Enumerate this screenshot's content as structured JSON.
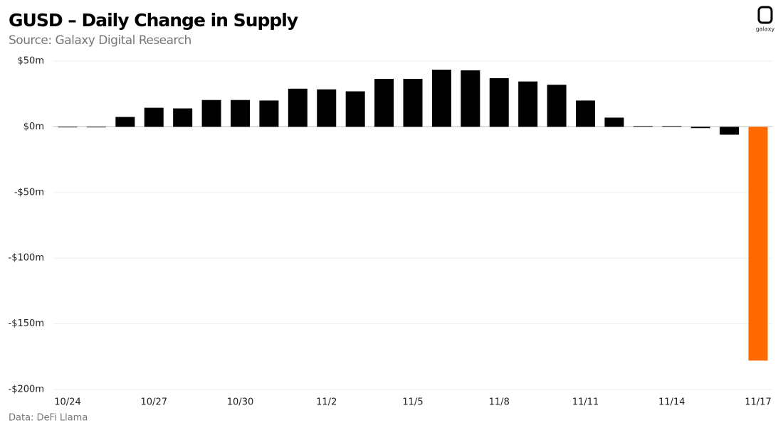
{
  "chart_data": {
    "type": "bar",
    "title": "GUSD – Daily Change in Supply",
    "subtitle": "Source: Galaxy Digital Research",
    "note": "Data: DeFi Llama",
    "logo": "galaxy",
    "categories": [
      "10/24",
      null,
      null,
      "10/27",
      null,
      null,
      "10/30",
      null,
      null,
      "11/2",
      null,
      null,
      "11/5",
      null,
      null,
      "11/8",
      null,
      null,
      "11/11",
      null,
      null,
      "11/14",
      null,
      null,
      "11/17"
    ],
    "values": [
      0,
      0,
      7.5,
      14.5,
      14,
      20.4,
      20.4,
      20,
      29,
      28.5,
      27,
      36.5,
      36.5,
      43.5,
      43,
      37,
      34.5,
      32,
      20,
      7,
      0.5,
      0.5,
      -1,
      -6,
      -178
    ],
    "colors": [
      "#000000",
      "#000000",
      "#000000",
      "#000000",
      "#000000",
      "#000000",
      "#000000",
      "#000000",
      "#000000",
      "#000000",
      "#000000",
      "#000000",
      "#000000",
      "#000000",
      "#000000",
      "#000000",
      "#000000",
      "#000000",
      "#000000",
      "#000000",
      "#000000",
      "#000000",
      "#000000",
      "#000000",
      "#ff6a00"
    ],
    "ylim": [
      -200,
      50
    ],
    "yticks": [
      {
        "value": 50,
        "label": "$50m"
      },
      {
        "value": 0,
        "label": "$0m"
      },
      {
        "value": -50,
        "label": "-$50m"
      },
      {
        "value": -100,
        "label": "-$100m"
      },
      {
        "value": -150,
        "label": "-$150m"
      },
      {
        "value": -200,
        "label": "-$200m"
      }
    ],
    "grid": true
  }
}
